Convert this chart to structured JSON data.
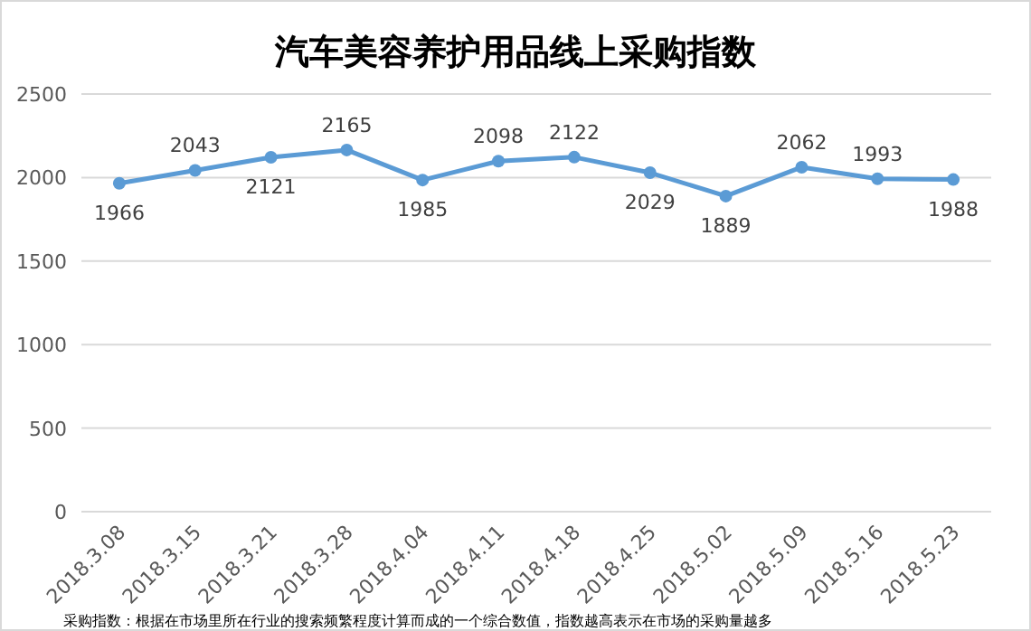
{
  "chart_data": {
    "type": "line",
    "title": "汽车美容养护用品线上采购指数",
    "categories": [
      "2018.3.08",
      "2018.3.15",
      "2018.3.21",
      "2018.3.28",
      "2018.4.04",
      "2018.4.11",
      "2018.4.18",
      "2018.4.25",
      "2018.5.02",
      "2018.5.09",
      "2018.5.16",
      "2018.5.23"
    ],
    "series": [
      {
        "color": "#5b9bd5",
        "values": [
          1966,
          2043,
          2121,
          2165,
          1985,
          2098,
          2122,
          2029,
          1889,
          2062,
          1993,
          1988
        ]
      }
    ],
    "ylim": [
      0,
      2500
    ],
    "yticks": [
      0,
      500,
      1000,
      1500,
      2000,
      2500
    ],
    "grid": "y",
    "marker": "circle",
    "line_style": "solid",
    "data_labels": true,
    "annotations": [
      "采购指数：根据在市场里所在行业的搜索频繁程度计算而成的一个综合数值，指数越高表示在市场的采购量越多"
    ]
  }
}
